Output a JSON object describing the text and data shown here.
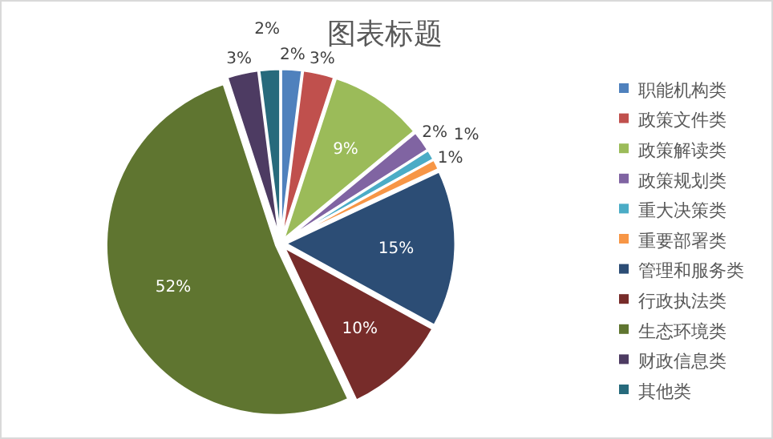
{
  "chart_data": {
    "type": "pie",
    "title": "图表标题",
    "categories": [
      "职能机构类",
      "政策文件类",
      "政策解读类",
      "政策规划类",
      "重大决策类",
      "重要部署类",
      "管理和服务类",
      "行政执法类",
      "生态环境类",
      "财政信息类",
      "其他类"
    ],
    "values": [
      2,
      3,
      9,
      2,
      1,
      1,
      15,
      10,
      52,
      3,
      2
    ],
    "colors": [
      "#4f81bd",
      "#c0504d",
      "#9bbb59",
      "#8064a2",
      "#4bacc6",
      "#f79646",
      "#2c4d75",
      "#772c2a",
      "#5f7530",
      "#4d3b62",
      "#276a7c"
    ],
    "value_labels": [
      "2%",
      "3%",
      "9%",
      "2%",
      "1%",
      "1%",
      "15%",
      "10%",
      "52%",
      "3%",
      "2%"
    ],
    "legend": "right"
  }
}
